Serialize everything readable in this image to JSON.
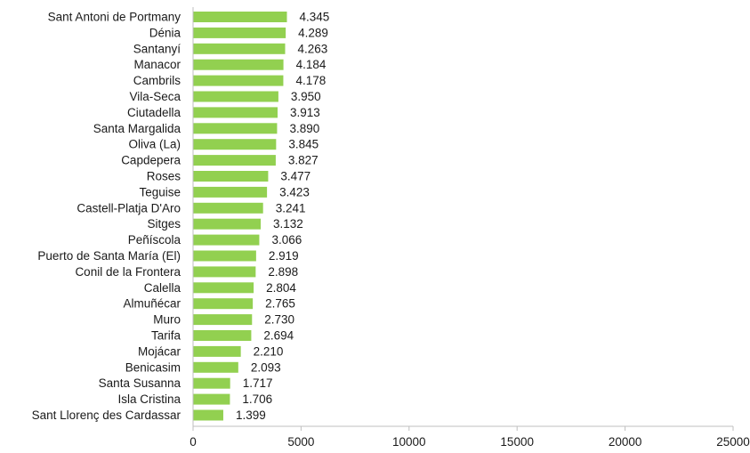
{
  "chart_data": {
    "type": "bar",
    "orientation": "horizontal",
    "categories": [
      "Sant Antoni de Portmany",
      "Dénia",
      "Santanyí",
      "Manacor",
      "Cambrils",
      "Vila-Seca",
      "Ciutadella",
      "Santa Margalida",
      "Oliva (La)",
      "Capdepera",
      "Roses",
      "Teguise",
      "Castell-Platja D'Aro",
      "Sitges",
      "Peñíscola",
      "Puerto de Santa María (El)",
      "Conil de la Frontera",
      "Calella",
      "Almuñécar",
      "Muro",
      "Tarifa",
      "Mojácar",
      "Benicasim",
      "Santa Susanna",
      "Isla Cristina",
      "Sant Llorenç des Cardassar"
    ],
    "values": [
      4345,
      4289,
      4263,
      4184,
      4178,
      3950,
      3913,
      3890,
      3845,
      3827,
      3477,
      3423,
      3241,
      3132,
      3066,
      2919,
      2898,
      2804,
      2765,
      2730,
      2694,
      2210,
      2093,
      1717,
      1706,
      1399
    ],
    "data_labels": [
      "4.345",
      "4.289",
      "4.263",
      "4.184",
      "4.178",
      "3.950",
      "3.913",
      "3.890",
      "3.845",
      "3.827",
      "3.477",
      "3.423",
      "3.241",
      "3.132",
      "3.066",
      "2.919",
      "2.898",
      "2.804",
      "2.765",
      "2.730",
      "2.694",
      "2.210",
      "2.093",
      "1.717",
      "1.706",
      "1.399"
    ],
    "xlim": [
      0,
      25000
    ],
    "xticks": [
      "0",
      "5000",
      "10000",
      "15000",
      "20000",
      "25000"
    ],
    "grid": false,
    "legend": "none",
    "bar_color": "#92d050",
    "axis_color": "#bfbfbf"
  }
}
